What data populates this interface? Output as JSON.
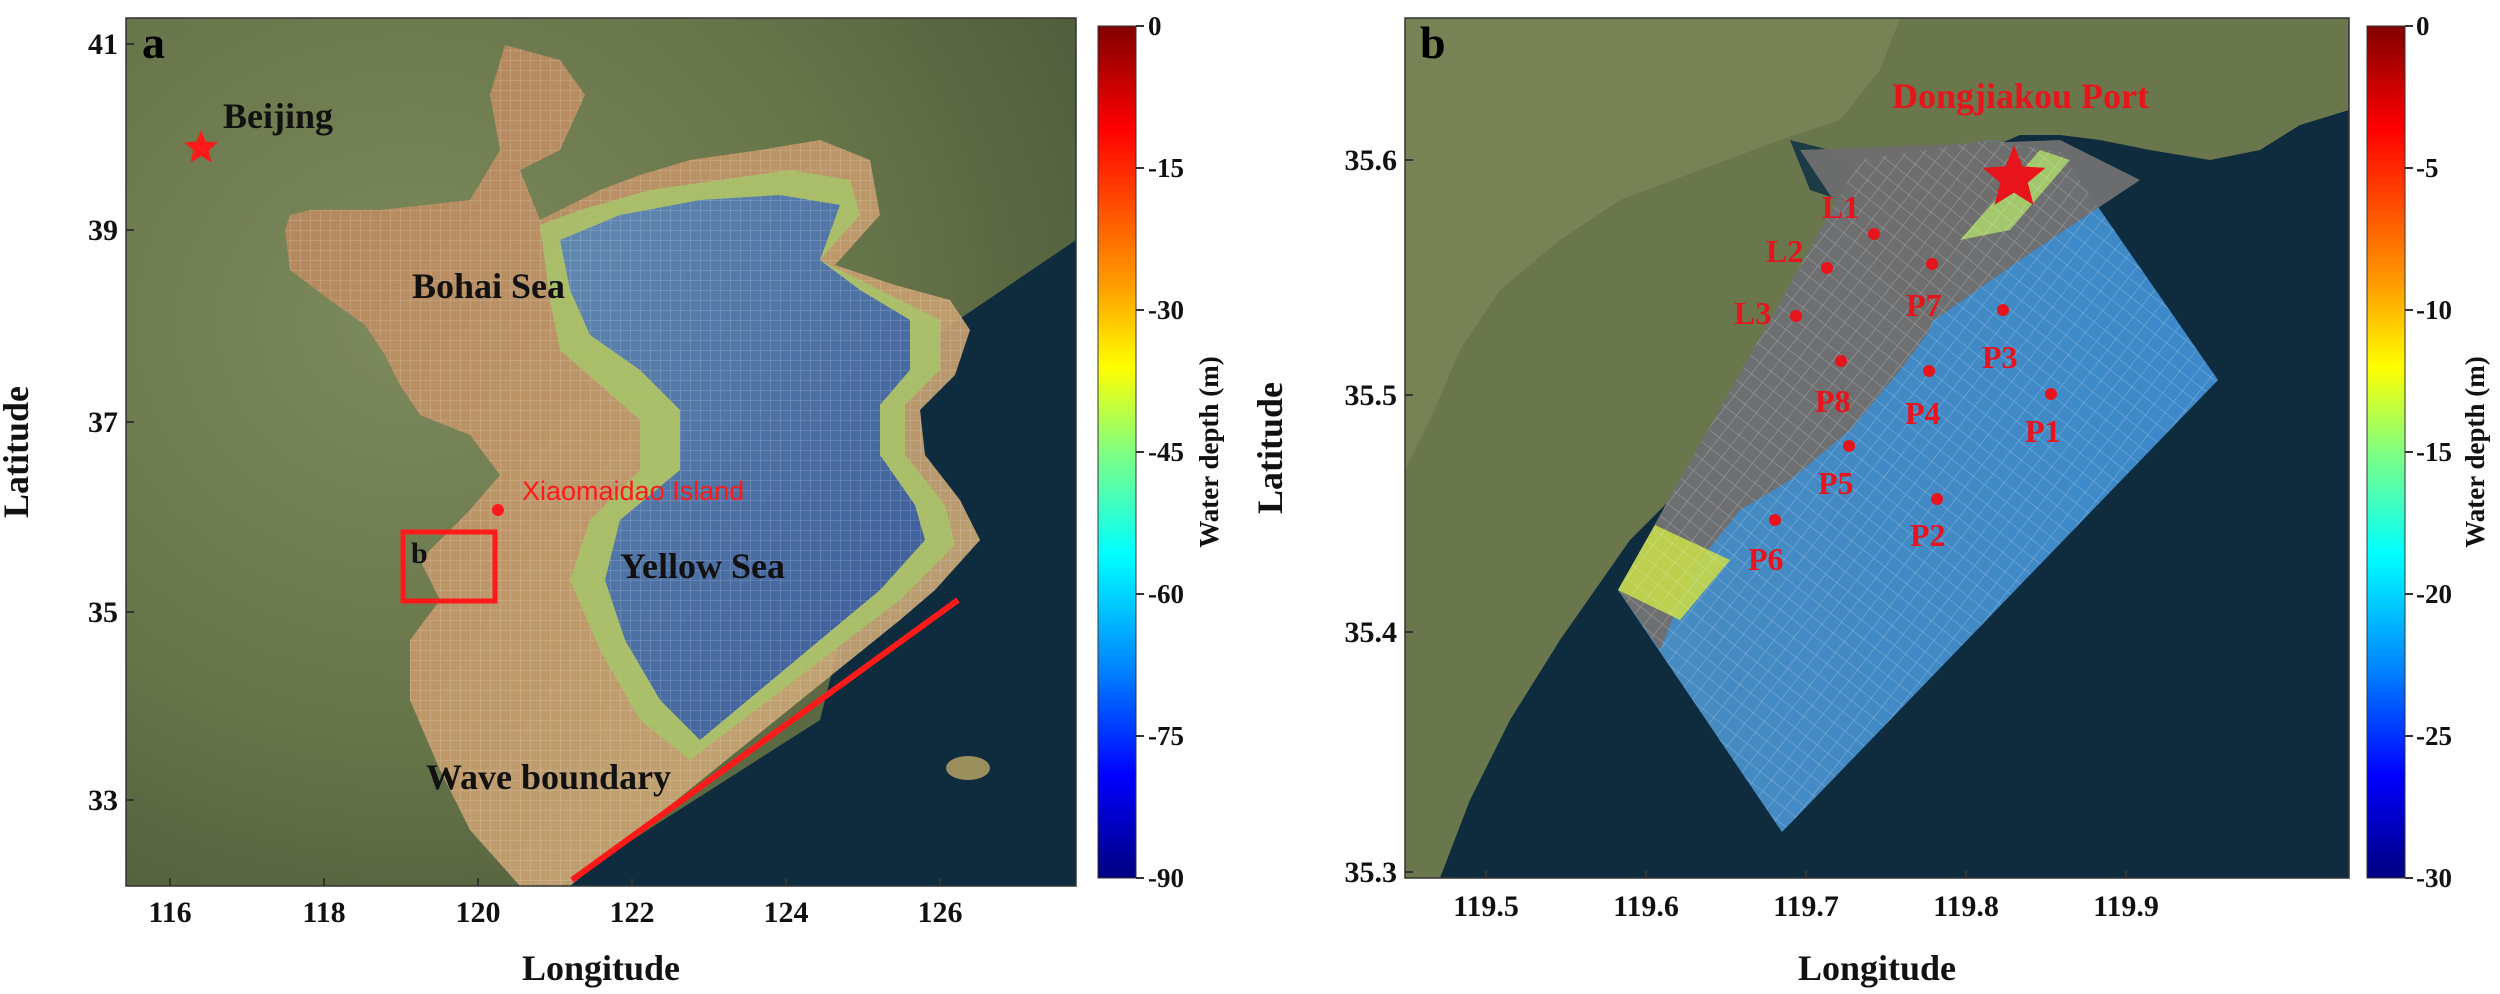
{
  "panel_a": {
    "letter": "a",
    "x_title": "Longitude",
    "y_title": "Latitude",
    "x_ticks": [
      "116",
      "118",
      "120",
      "122",
      "124",
      "126"
    ],
    "y_ticks": [
      "41",
      "39",
      "37",
      "35",
      "33"
    ],
    "labels": {
      "beijing": "Beijing",
      "bohai": "Bohai Sea",
      "yellow": "Yellow Sea",
      "island": "Xiaomaidao Island",
      "boundary": "Wave boundary",
      "inset": "b"
    },
    "colorbar": {
      "ticks": [
        "0",
        "-15",
        "-30",
        "-45",
        "-60",
        "-75",
        "-90"
      ],
      "label": "Water depth (m)"
    }
  },
  "panel_b": {
    "letter": "b",
    "x_title": "Longitude",
    "y_title": "Latitude",
    "x_ticks": [
      "119.5",
      "119.6",
      "119.7",
      "119.8",
      "119.9"
    ],
    "y_ticks": [
      "35.6",
      "35.5",
      "35.4",
      "35.3"
    ],
    "port": "Dongjiakou Port",
    "points": [
      "L1",
      "L2",
      "L3",
      "P7",
      "P3",
      "P8",
      "P4",
      "P1",
      "P5",
      "P2",
      "P6"
    ],
    "colorbar": {
      "ticks": [
        "0",
        "-5",
        "-10",
        "-15",
        "-20",
        "-25",
        "-30"
      ],
      "label": "Water depth (m)"
    }
  },
  "colors": {
    "marker_red": "#e8141b",
    "land": "#6c7a4e",
    "sea": "#0e2c3e",
    "mesh_grey": "#6e6e6e"
  },
  "icons": [
    "star-marker-icon",
    "inset-box-icon",
    "point-marker-icon"
  ]
}
